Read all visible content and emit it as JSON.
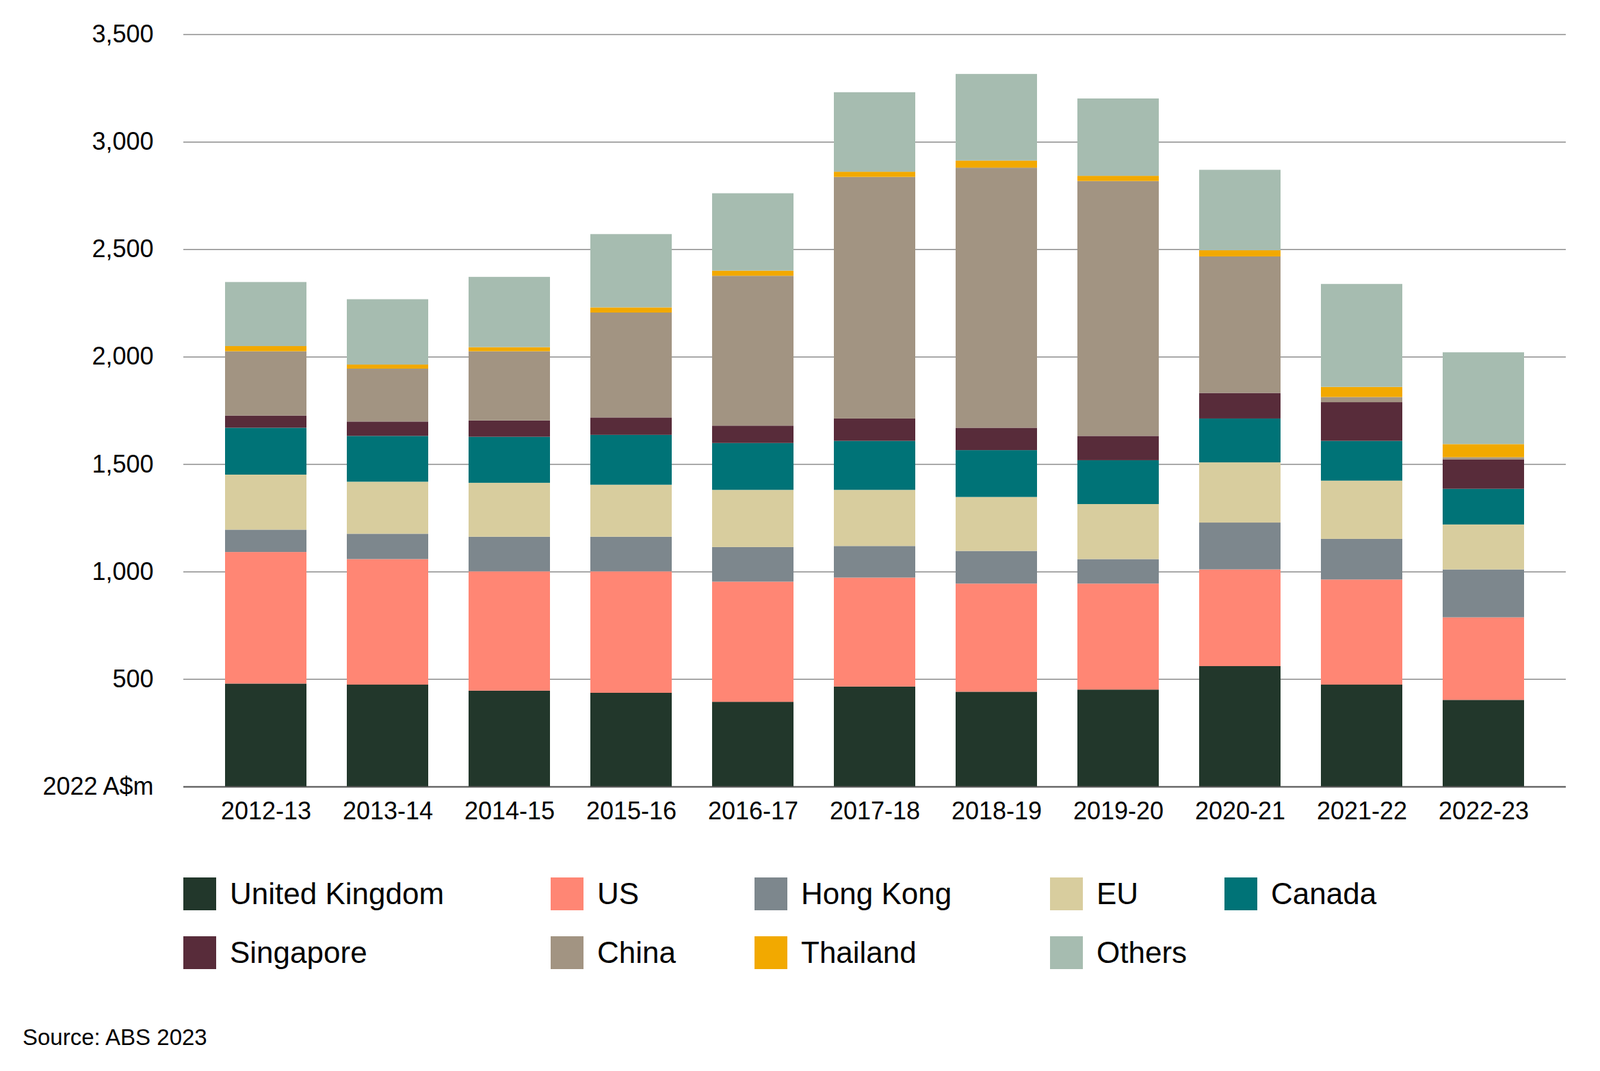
{
  "chart_data": {
    "type": "bar",
    "stacked": true,
    "grid": true,
    "legend": "bottom",
    "caption": "Source: ABS 2023",
    "categories": [
      "2012-13",
      "2013-14",
      "2014-15",
      "2015-16",
      "2016-17",
      "2017-18",
      "2018-19",
      "2019-20",
      "2020-21",
      "2021-22",
      "2022-23"
    ],
    "ylim": [
      0,
      3500
    ],
    "yticks": [
      {
        "value": 0,
        "label": "2022 A$m"
      },
      500,
      {
        "value": 1000,
        "label": "1,000"
      },
      {
        "value": 1500,
        "label": "1,500"
      },
      {
        "value": 2000,
        "label": "2,000"
      },
      {
        "value": 2500,
        "label": "2,500"
      },
      {
        "value": 3000,
        "label": "3,000"
      },
      {
        "value": 3500,
        "label": "3,500"
      }
    ],
    "series": [
      {
        "name": "United Kingdom",
        "color": "#22372b",
        "values": [
          479,
          474,
          446,
          436,
          394,
          465,
          441,
          451,
          560,
          474,
          403
        ]
      },
      {
        "name": "US",
        "color": "#ff8674",
        "values": [
          612,
          584,
          555,
          565,
          559,
          507,
          503,
          493,
          450,
          489,
          384
        ]
      },
      {
        "name": "Hong Kong",
        "color": "#7d878d",
        "values": [
          104,
          118,
          161,
          161,
          161,
          147,
          152,
          114,
          218,
          189,
          223
        ]
      },
      {
        "name": "EU",
        "color": "#d8cd9e",
        "values": [
          256,
          242,
          251,
          242,
          266,
          261,
          251,
          256,
          280,
          271,
          209
        ]
      },
      {
        "name": "Canada",
        "color": "#007377",
        "values": [
          218,
          213,
          214,
          232,
          218,
          228,
          218,
          204,
          204,
          185,
          166
        ]
      },
      {
        "name": "Singapore",
        "color": "#582c3a",
        "values": [
          57,
          67,
          76,
          81,
          81,
          104,
          104,
          113,
          119,
          180,
          137
        ]
      },
      {
        "name": "China",
        "color": "#a29482",
        "values": [
          299,
          246,
          322,
          488,
          697,
          1124,
          1210,
          1186,
          635,
          24,
          10
        ]
      },
      {
        "name": "Thailand",
        "color": "#f2a900",
        "values": [
          24,
          19,
          19,
          24,
          24,
          24,
          33,
          24,
          29,
          47,
          61
        ]
      },
      {
        "name": "Others",
        "color": "#a6bcb0",
        "values": [
          298,
          304,
          327,
          341,
          360,
          370,
          403,
          360,
          374,
          479,
          427
        ]
      }
    ]
  }
}
